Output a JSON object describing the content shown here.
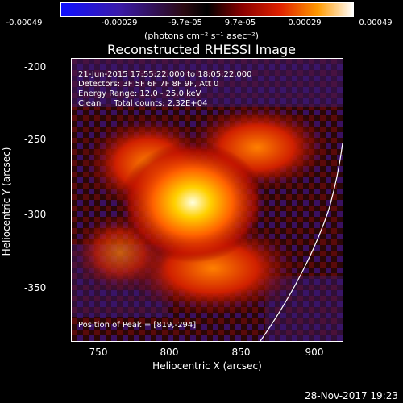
{
  "colorbar": {
    "ticks": [
      "-0.00049",
      "-0.00029",
      "-9.7e-05",
      "9.7e-05",
      "0.00029",
      "0.00049"
    ],
    "units": "(photons cm⁻² s⁻¹ asec⁻²)"
  },
  "title": "Reconstructed RHESSI Image",
  "info": {
    "time": "21-Jun-2015 17:55:22.000 to 18:05:22.000",
    "detectors": "Detectors: 3F 5F 6F 7F 8F 9F, Att 0",
    "energy": "Energy Range: 12.0 - 25.0 keV",
    "clean": "Clean     Total counts: 2.32E+04",
    "peak": "Position of Peak = [819,-294]"
  },
  "axes": {
    "xlabel": "Heliocentric X (arcsec)",
    "ylabel": "Heliocentric Y (arcsec)",
    "xticks": [
      "750",
      "800",
      "850",
      "900"
    ],
    "yticks": [
      "-200",
      "-250",
      "-300",
      "-350"
    ]
  },
  "timestamp": "28-Nov-2017 19:23"
}
